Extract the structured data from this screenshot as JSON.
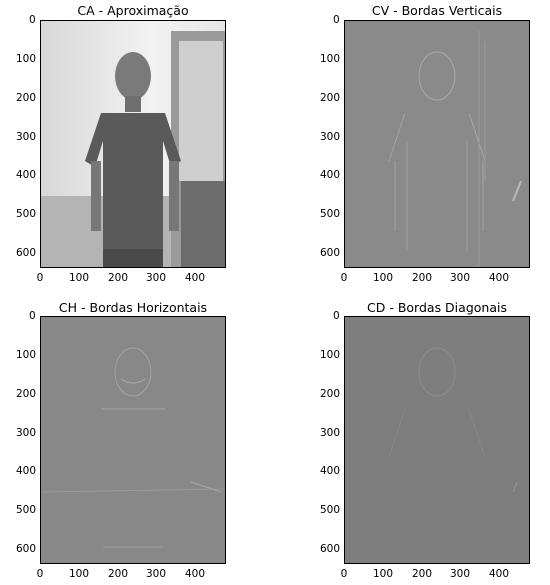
{
  "panels": [
    {
      "title": "CA - Aproximação"
    },
    {
      "title": "CV - Bordas Verticais"
    },
    {
      "title": "CH - Bordas Horizontais"
    },
    {
      "title": "CD - Bordas Diagonais"
    }
  ],
  "y_ticks": [
    "0",
    "100",
    "200",
    "300",
    "400",
    "500",
    "600"
  ],
  "x_ticks": [
    "0",
    "100",
    "200",
    "300",
    "400"
  ],
  "colors": {
    "approx_bg": "#dcdcdc",
    "cv_bg": "#8a8a8a",
    "ch_bg": "#888888",
    "cd_bg": "#7e7e7e"
  }
}
